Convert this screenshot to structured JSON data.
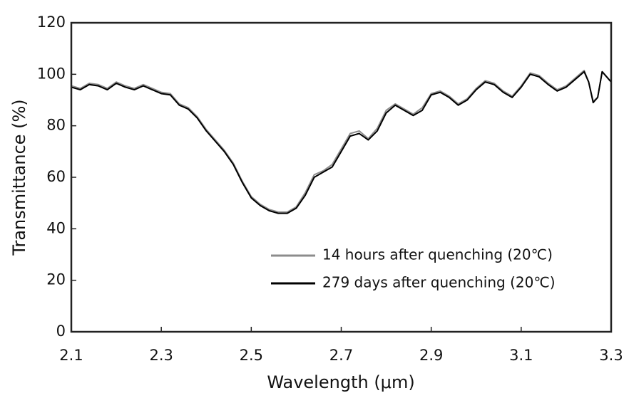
{
  "chart_data": {
    "type": "line",
    "xlabel": "Wavelength (μm)",
    "ylabel": "Transmittance (%)",
    "x": [
      2.1,
      2.12,
      2.14,
      2.16,
      2.18,
      2.2,
      2.22,
      2.24,
      2.26,
      2.28,
      2.3,
      2.32,
      2.34,
      2.36,
      2.38,
      2.4,
      2.42,
      2.44,
      2.46,
      2.48,
      2.5,
      2.52,
      2.54,
      2.56,
      2.58,
      2.6,
      2.62,
      2.64,
      2.66,
      2.68,
      2.7,
      2.72,
      2.74,
      2.76,
      2.78,
      2.8,
      2.82,
      2.84,
      2.86,
      2.88,
      2.9,
      2.92,
      2.94,
      2.96,
      2.98,
      3.0,
      3.02,
      3.04,
      3.06,
      3.08,
      3.1,
      3.12,
      3.14,
      3.16,
      3.18,
      3.2,
      3.22,
      3.24,
      3.25,
      3.26,
      3.27,
      3.28,
      3.3
    ],
    "series": [
      {
        "name": "14 hours after quenching (20℃)",
        "color": "#8c8c8c",
        "values": [
          95.5,
          94.5,
          96.5,
          96,
          94.5,
          97,
          95.5,
          94.5,
          96,
          94.5,
          93,
          92.5,
          88.5,
          87,
          83.5,
          78.5,
          74.5,
          70.5,
          65.5,
          58.5,
          52.5,
          49.5,
          47.5,
          46.5,
          46.5,
          48.5,
          54,
          61,
          62.5,
          65,
          71,
          77,
          78,
          75,
          79,
          86,
          88.5,
          86.5,
          84.5,
          87,
          92.5,
          93.5,
          91.5,
          88.5,
          90.5,
          94.5,
          97.5,
          96.5,
          93.5,
          91.5,
          95.5,
          100.5,
          99.5,
          96.5,
          94,
          95.5,
          98.5,
          101.5,
          97,
          89.5,
          91,
          101,
          97
        ]
      },
      {
        "name": "279 days after quenching (20℃)",
        "color": "#000000",
        "values": [
          95,
          94,
          96,
          95.5,
          94,
          96.5,
          95,
          94,
          95.5,
          94,
          92.5,
          92,
          88,
          86.5,
          83,
          78,
          74,
          70,
          65,
          58,
          52,
          49,
          47,
          46,
          46,
          48,
          53,
          60,
          62,
          64,
          70,
          76,
          77,
          74.5,
          78,
          85,
          88,
          86,
          84,
          86,
          92,
          93,
          91,
          88,
          90,
          94,
          97,
          96,
          93,
          91,
          95,
          100,
          99,
          96,
          93.5,
          95,
          98,
          101,
          97,
          89,
          91,
          101,
          97
        ]
      }
    ],
    "xlim": [
      2.1,
      3.3
    ],
    "xticks": [
      2.1,
      2.3,
      2.5,
      2.7,
      2.9,
      3.1,
      3.3
    ],
    "ylim": [
      0,
      120
    ],
    "yticks": [
      0,
      20,
      40,
      60,
      80,
      100,
      120
    ],
    "legend": "lower right"
  }
}
